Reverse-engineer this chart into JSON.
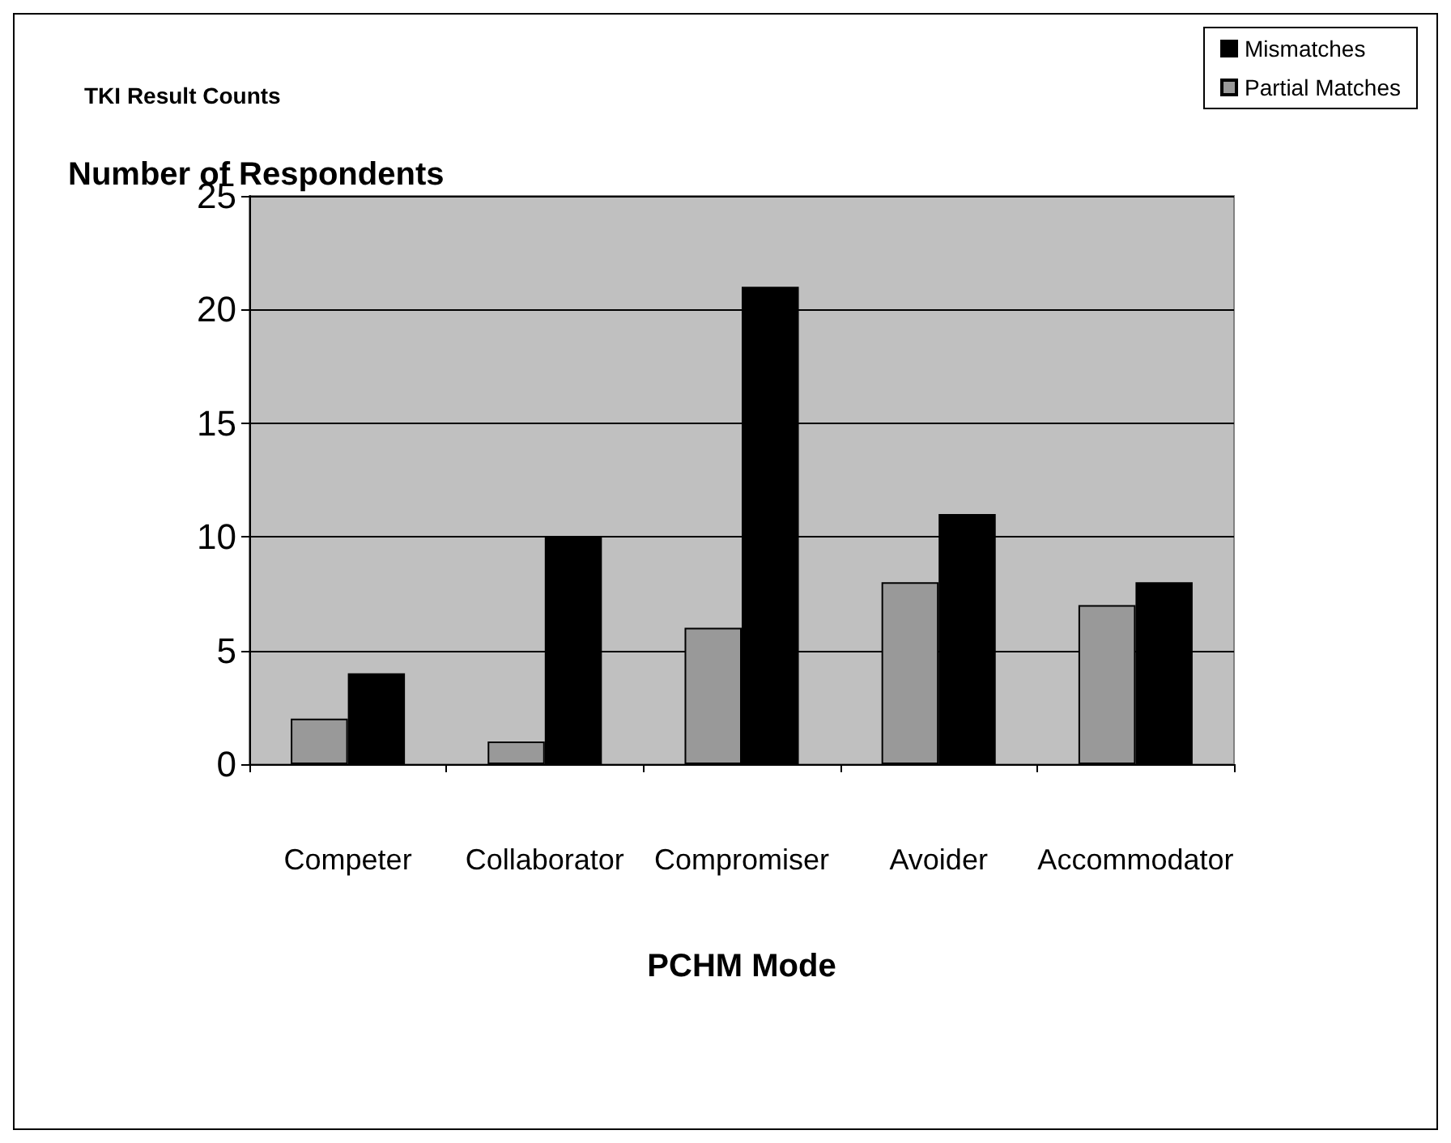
{
  "chart_data": {
    "type": "bar",
    "title": "TKI Result Counts",
    "ylabel": "Number of Respondents",
    "xlabel": "PCHM Mode",
    "categories": [
      "Competer",
      "Collaborator",
      "Compromiser",
      "Avoider",
      "Accommodator"
    ],
    "series": [
      {
        "name": "Partial Matches",
        "color": "#999999",
        "values": [
          2,
          1,
          6,
          8,
          7
        ]
      },
      {
        "name": "Mismatches",
        "color": "#000000",
        "values": [
          4,
          10,
          21,
          11,
          8
        ]
      }
    ],
    "ylim": [
      0,
      25
    ],
    "yticks": [
      0,
      5,
      10,
      15,
      20,
      25
    ],
    "grid": "y",
    "legend": "top right"
  }
}
